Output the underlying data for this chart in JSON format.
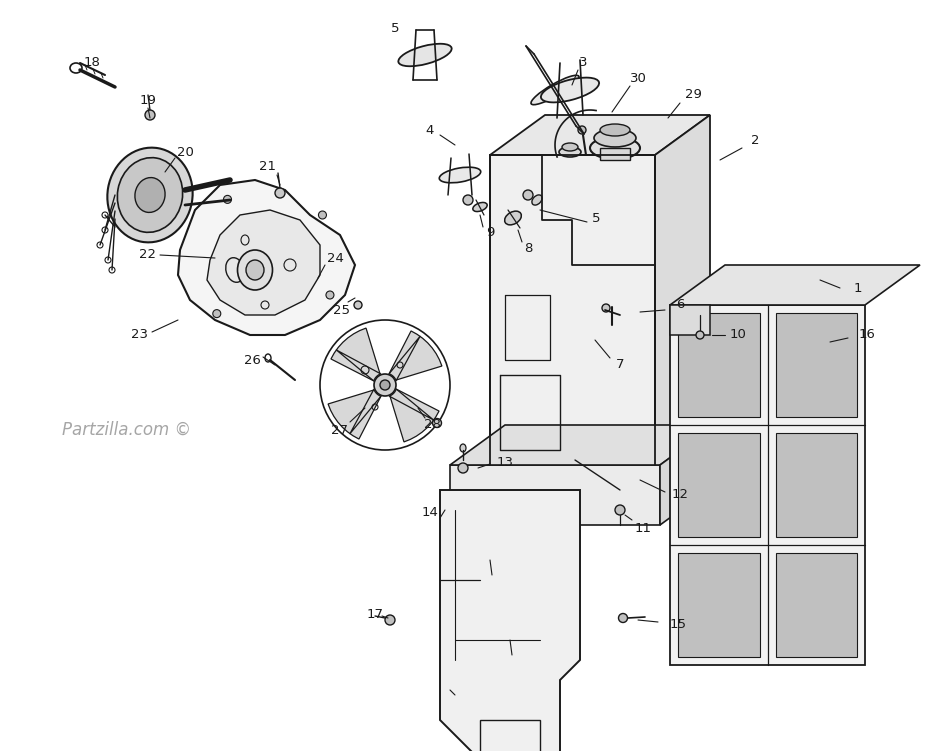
{
  "bg_color": "#ffffff",
  "line_color": "#1a1a1a",
  "watermark": "Partzilla.com ©",
  "figsize": [
    9.5,
    7.51
  ],
  "dpi": 100
}
